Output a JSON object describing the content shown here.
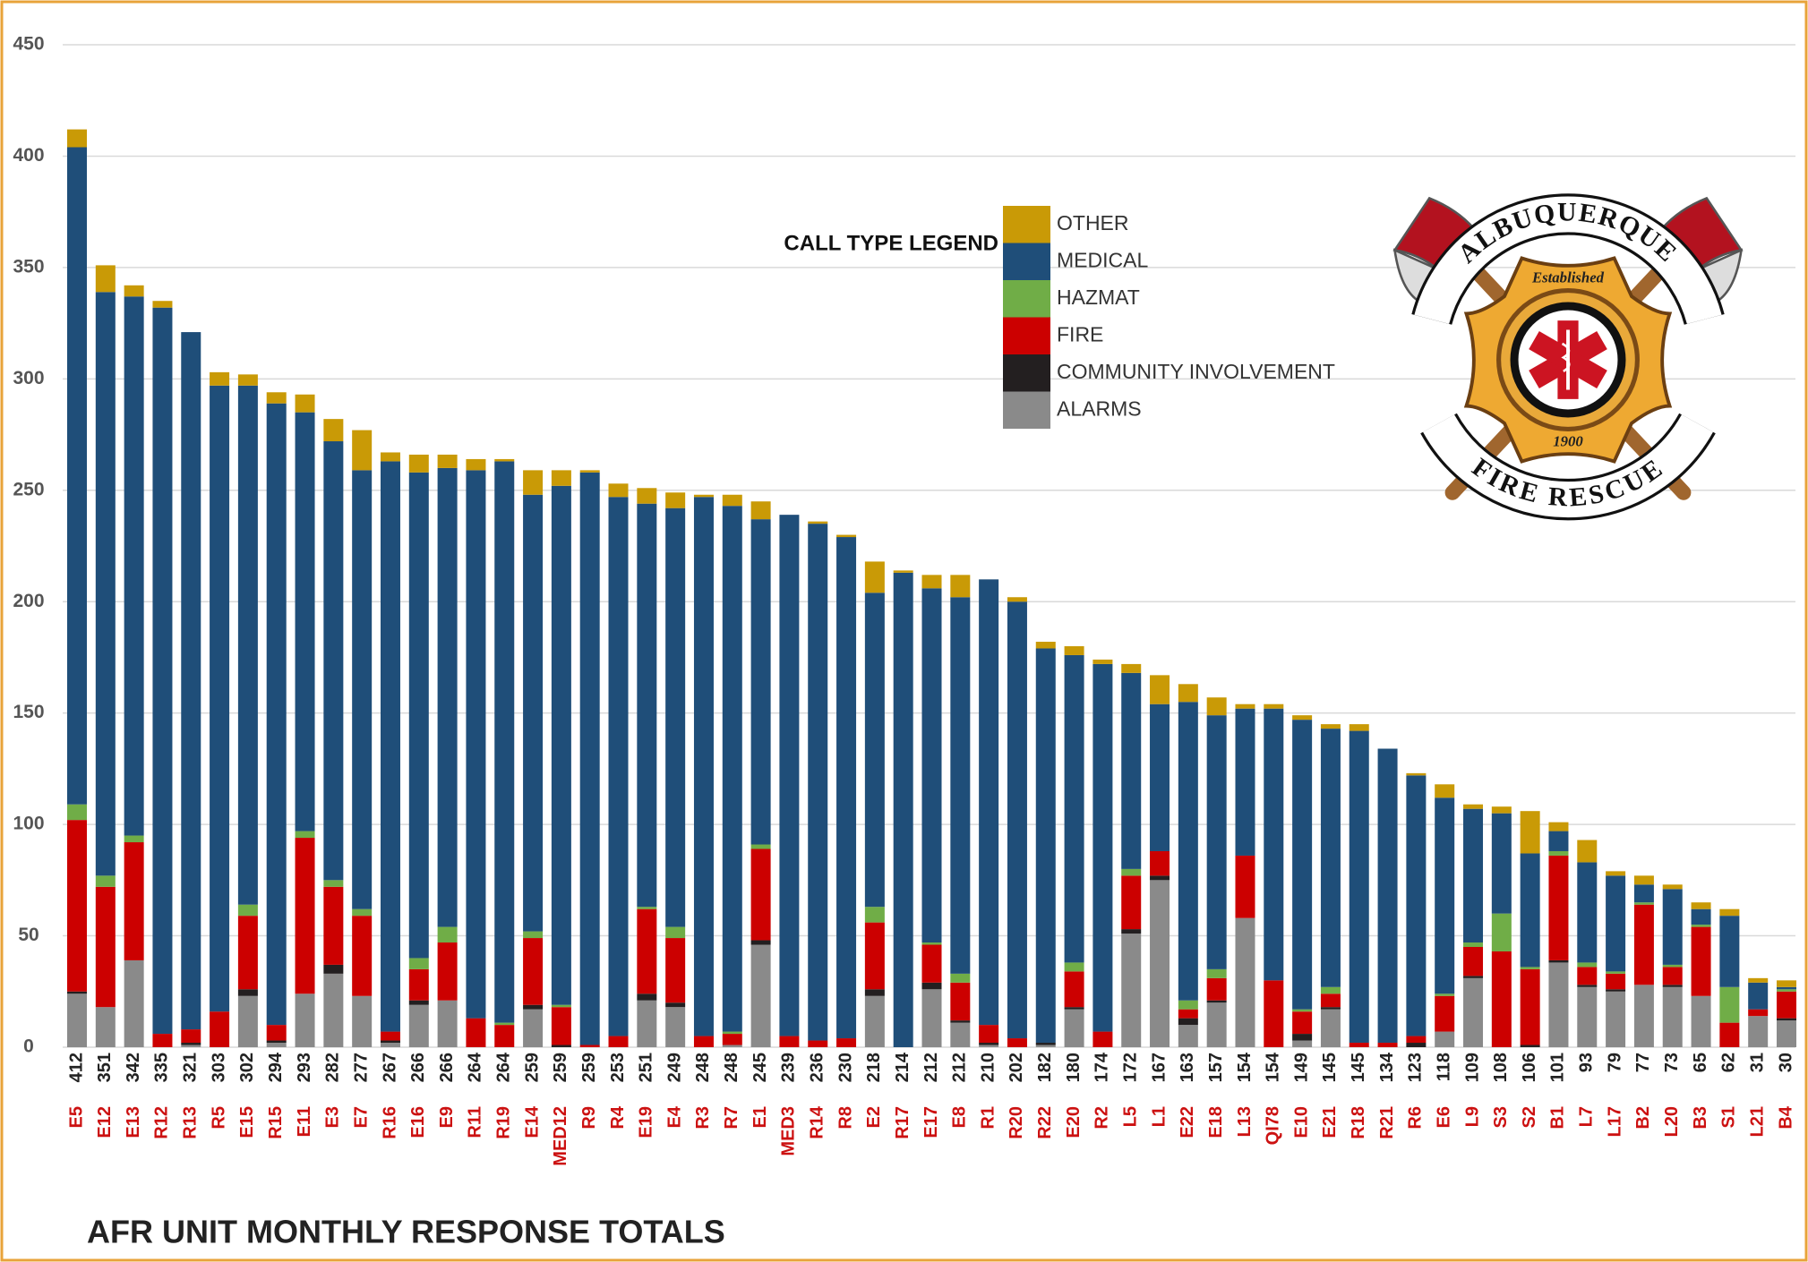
{
  "chart_data": {
    "type": "stacked-bar",
    "title": "AFR UNIT MONTHLY RESPONSE TOTALS",
    "legend_title": "CALL TYPE LEGEND",
    "categories": [
      "E5",
      "E12",
      "E13",
      "R12",
      "R13",
      "R5",
      "E15",
      "R15",
      "E11",
      "E3",
      "E7",
      "R16",
      "E16",
      "E9",
      "R11",
      "R19",
      "E14",
      "MED12",
      "R9",
      "R4",
      "E19",
      "E4",
      "R3",
      "R7",
      "E1",
      "MED3",
      "R14",
      "R8",
      "E2",
      "R17",
      "E17",
      "E8",
      "R1",
      "R20",
      "R22",
      "E20",
      "R2",
      "L5",
      "L1",
      "E22",
      "E18",
      "L13",
      "QI78",
      "E10",
      "E21",
      "R18",
      "R21",
      "R6",
      "E6",
      "L9",
      "S3",
      "S2",
      "B1",
      "L7",
      "L17",
      "B2",
      "L20",
      "B3",
      "S1",
      "L21",
      "B4"
    ],
    "totals": [
      412,
      351,
      342,
      335,
      321,
      303,
      302,
      294,
      293,
      282,
      277,
      267,
      266,
      266,
      264,
      264,
      259,
      259,
      259,
      253,
      251,
      249,
      248,
      248,
      245,
      239,
      236,
      230,
      218,
      214,
      212,
      212,
      210,
      202,
      182,
      180,
      174,
      172,
      167,
      163,
      157,
      154,
      154,
      149,
      145,
      145,
      134,
      123,
      118,
      109,
      108,
      106,
      101,
      93,
      79,
      77,
      73,
      65,
      62,
      31,
      30
    ],
    "series": [
      {
        "name": "ALARMS",
        "color": "#8a8a8a",
        "values": [
          24,
          18,
          39,
          0,
          1,
          0,
          23,
          2,
          24,
          33,
          23,
          2,
          19,
          21,
          0,
          0,
          17,
          0,
          0,
          0,
          21,
          18,
          0,
          1,
          46,
          0,
          0,
          0,
          23,
          0,
          26,
          11,
          1,
          0,
          1,
          17,
          0,
          51,
          75,
          10,
          20,
          58,
          0,
          3,
          17,
          0,
          0,
          0,
          7,
          31,
          0,
          0,
          38,
          27,
          25,
          28,
          27,
          23,
          0,
          14,
          12
        ]
      },
      {
        "name": "COMMUNITY INVOLVEMENT",
        "color": "#231f20",
        "values": [
          1,
          0,
          0,
          0,
          1,
          0,
          3,
          1,
          0,
          4,
          0,
          1,
          2,
          0,
          0,
          0,
          2,
          1,
          0,
          0,
          3,
          2,
          0,
          0,
          2,
          0,
          0,
          0,
          3,
          0,
          3,
          1,
          1,
          0,
          1,
          1,
          0,
          2,
          2,
          3,
          1,
          0,
          0,
          3,
          1,
          0,
          0,
          2,
          0,
          1,
          0,
          1,
          1,
          1,
          1,
          0,
          1,
          0,
          0,
          0,
          1
        ]
      },
      {
        "name": "FIRE",
        "color": "#cc0000",
        "values": [
          77,
          54,
          53,
          6,
          6,
          16,
          33,
          7,
          70,
          35,
          36,
          4,
          14,
          26,
          13,
          10,
          30,
          17,
          1,
          5,
          38,
          29,
          5,
          5,
          41,
          5,
          3,
          4,
          30,
          0,
          17,
          17,
          8,
          4,
          0,
          16,
          7,
          24,
          11,
          4,
          10,
          28,
          30,
          10,
          6,
          2,
          2,
          3,
          16,
          13,
          43,
          34,
          47,
          8,
          7,
          36,
          8,
          31,
          11,
          3,
          12
        ]
      },
      {
        "name": "HAZMAT",
        "color": "#70ad47",
        "values": [
          7,
          5,
          3,
          0,
          0,
          0,
          5,
          0,
          3,
          3,
          3,
          0,
          5,
          7,
          0,
          1,
          3,
          1,
          0,
          0,
          1,
          5,
          0,
          1,
          2,
          0,
          0,
          0,
          7,
          0,
          1,
          4,
          0,
          0,
          0,
          4,
          0,
          3,
          0,
          4,
          4,
          0,
          0,
          1,
          3,
          0,
          0,
          0,
          1,
          2,
          17,
          1,
          2,
          2,
          1,
          1,
          1,
          1,
          16,
          0,
          1
        ]
      },
      {
        "name": "MEDICAL",
        "color": "#1f4e79",
        "values": [
          295,
          262,
          242,
          326,
          313,
          281,
          233,
          279,
          188,
          197,
          197,
          256,
          218,
          206,
          246,
          252,
          196,
          233,
          257,
          242,
          181,
          188,
          242,
          236,
          146,
          234,
          232,
          225,
          141,
          213,
          159,
          169,
          200,
          196,
          177,
          138,
          165,
          88,
          66,
          134,
          114,
          66,
          122,
          130,
          116,
          140,
          132,
          117,
          88,
          60,
          45,
          51,
          9,
          45,
          43,
          8,
          34,
          7,
          32,
          12,
          1
        ]
      },
      {
        "name": "OTHER",
        "color": "#c99a06",
        "values": [
          8,
          12,
          5,
          3,
          0,
          6,
          5,
          5,
          8,
          10,
          18,
          4,
          8,
          6,
          5,
          1,
          11,
          7,
          1,
          6,
          7,
          7,
          1,
          5,
          8,
          0,
          1,
          1,
          14,
          1,
          6,
          10,
          0,
          2,
          3,
          4,
          2,
          4,
          13,
          8,
          8,
          2,
          2,
          2,
          2,
          3,
          0,
          1,
          6,
          2,
          3,
          19,
          4,
          10,
          2,
          4,
          2,
          3,
          3,
          2,
          3
        ]
      }
    ],
    "ylim": [
      0,
      450
    ],
    "yticks": [
      0,
      50,
      100,
      150,
      200,
      250,
      300,
      350,
      400,
      450
    ],
    "grid": true,
    "category_label_color": "#cc1111",
    "total_label_color": "#222222"
  },
  "logo": {
    "top": "ALBUQUERQUE",
    "bottom": "FIRE RESCUE",
    "established": "Established",
    "year": "1900"
  }
}
